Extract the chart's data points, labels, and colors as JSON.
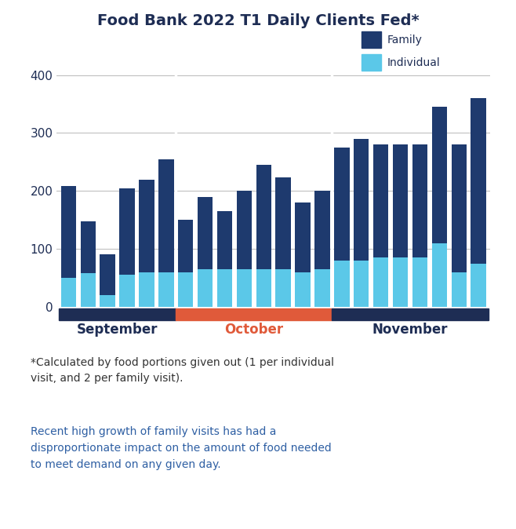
{
  "title": "Food Bank 2022 T1 Daily Clients Fed*",
  "family_color": "#1e3a6e",
  "individual_color": "#5bc8e8",
  "september_color": "#1e2d54",
  "october_color": "#e05a3a",
  "november_color": "#1e2d54",
  "background_color": "#ffffff",
  "ylim": [
    0,
    420
  ],
  "yticks": [
    0,
    100,
    200,
    300,
    400
  ],
  "bars": [
    {
      "month": "September",
      "individual": 50,
      "family": 158
    },
    {
      "month": "September",
      "individual": 58,
      "family": 90
    },
    {
      "month": "September",
      "individual": 20,
      "family": 70
    },
    {
      "month": "September",
      "individual": 55,
      "family": 150
    },
    {
      "month": "September",
      "individual": 60,
      "family": 160
    },
    {
      "month": "September",
      "individual": 60,
      "family": 195
    },
    {
      "month": "October",
      "individual": 60,
      "family": 90
    },
    {
      "month": "October",
      "individual": 65,
      "family": 125
    },
    {
      "month": "October",
      "individual": 65,
      "family": 100
    },
    {
      "month": "October",
      "individual": 65,
      "family": 135
    },
    {
      "month": "October",
      "individual": 65,
      "family": 180
    },
    {
      "month": "October",
      "individual": 65,
      "family": 158
    },
    {
      "month": "October",
      "individual": 60,
      "family": 120
    },
    {
      "month": "October",
      "individual": 65,
      "family": 135
    },
    {
      "month": "November",
      "individual": 80,
      "family": 195
    },
    {
      "month": "November",
      "individual": 80,
      "family": 210
    },
    {
      "month": "November",
      "individual": 85,
      "family": 195
    },
    {
      "month": "November",
      "individual": 85,
      "family": 195
    },
    {
      "month": "November",
      "individual": 85,
      "family": 195
    },
    {
      "month": "November",
      "individual": 110,
      "family": 235
    },
    {
      "month": "November",
      "individual": 60,
      "family": 220
    },
    {
      "month": "November",
      "individual": 75,
      "family": 285
    }
  ],
  "sep_bar_count": 6,
  "oct_bar_count": 8,
  "nov_bar_count": 8,
  "footnote1": "*Calculated by food portions given out (1 per individual\nvisit, and 2 per family visit).",
  "footnote2": "Recent high growth of family visits has had a\ndisproportionate impact on the amount of food needed\nto meet demand on any given day.",
  "text_color": "#1e2d54",
  "october_label_color": "#e05a3a",
  "footnote1_color": "#333333",
  "footnote2_color": "#2e5fa3",
  "title_fontsize": 14,
  "axis_fontsize": 11,
  "month_label_fontsize": 12,
  "legend_fontsize": 10,
  "footnote_fontsize": 10
}
